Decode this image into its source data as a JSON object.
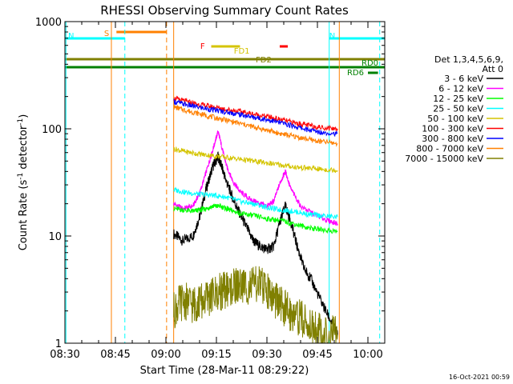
{
  "chart_data": {
    "type": "line",
    "title": "RHESSI Observing Summary Count Rates",
    "xlabel": "Start Time (28-Mar-11 08:29:22)",
    "ylabel_main": "Count Rate (s",
    "ylabel_sup1": "-1",
    "ylabel_mid": " detector",
    "ylabel_sup2": "-1",
    "ylabel_end": ")",
    "footer": "16-Oct-2021 00:59",
    "y_scale": "log",
    "ylim": [
      1,
      1000
    ],
    "xlim_minutes": [
      510,
      605
    ],
    "x_ticks": [
      {
        "min": 510,
        "label": "08:30"
      },
      {
        "min": 525,
        "label": "08:45"
      },
      {
        "min": 540,
        "label": "09:00"
      },
      {
        "min": 555,
        "label": "09:15"
      },
      {
        "min": 570,
        "label": "09:30"
      },
      {
        "min": 585,
        "label": "09:45"
      },
      {
        "min": 600,
        "label": "10:00"
      }
    ],
    "y_ticks": [
      {
        "v": 1,
        "label": "1"
      },
      {
        "v": 10,
        "label": "10"
      },
      {
        "v": 100,
        "label": "100"
      },
      {
        "v": 1000,
        "label": "1000"
      }
    ],
    "legend": {
      "header1": "Det 1,3,4,5,6,9,",
      "header2": "Att 0",
      "placement": "right"
    },
    "series": [
      {
        "name": "3 - 6 keV",
        "color": "#000000",
        "points": [
          [
            542.3,
            10.5
          ],
          [
            545,
            9
          ],
          [
            548,
            10
          ],
          [
            550,
            15
          ],
          [
            552,
            28
          ],
          [
            554,
            45
          ],
          [
            555.5,
            55
          ],
          [
            556.5,
            45
          ],
          [
            558,
            32
          ],
          [
            560,
            22
          ],
          [
            562,
            16
          ],
          [
            564,
            12
          ],
          [
            566,
            9
          ],
          [
            568,
            8
          ],
          [
            570,
            7.5
          ],
          [
            572,
            8
          ],
          [
            574,
            14
          ],
          [
            575.5,
            19
          ],
          [
            577,
            14
          ],
          [
            579,
            8
          ],
          [
            581,
            5
          ],
          [
            583,
            4
          ],
          [
            586,
            2.5
          ],
          [
            589,
            1.6
          ],
          [
            591,
            1.2
          ]
        ]
      },
      {
        "name": "6 - 12 keV",
        "color": "#ff00ff",
        "points": [
          [
            542.3,
            20
          ],
          [
            545,
            18
          ],
          [
            548,
            19
          ],
          [
            550,
            25
          ],
          [
            552,
            40
          ],
          [
            554,
            65
          ],
          [
            555.5,
            95
          ],
          [
            556.5,
            70
          ],
          [
            558,
            45
          ],
          [
            560,
            32
          ],
          [
            562,
            26
          ],
          [
            565,
            22
          ],
          [
            568,
            20
          ],
          [
            570,
            19
          ],
          [
            572,
            21
          ],
          [
            574,
            32
          ],
          [
            575.5,
            40
          ],
          [
            577,
            28
          ],
          [
            580,
            19
          ],
          [
            584,
            16
          ],
          [
            588,
            14
          ],
          [
            591,
            13
          ]
        ]
      },
      {
        "name": "12 - 25 keV",
        "color": "#00ff00",
        "points": [
          [
            542.3,
            18
          ],
          [
            545,
            17.5
          ],
          [
            548,
            17
          ],
          [
            550,
            17.5
          ],
          [
            552,
            18
          ],
          [
            554,
            19
          ],
          [
            556,
            19
          ],
          [
            558,
            18
          ],
          [
            560,
            17
          ],
          [
            563,
            16
          ],
          [
            566,
            15.5
          ],
          [
            570,
            14.5
          ],
          [
            574,
            14
          ],
          [
            578,
            13
          ],
          [
            582,
            12
          ],
          [
            586,
            11.5
          ],
          [
            591,
            11
          ]
        ]
      },
      {
        "name": "25 - 50 keV",
        "color": "#00ffff",
        "points": [
          [
            542.3,
            27
          ],
          [
            546,
            25.5
          ],
          [
            550,
            24.5
          ],
          [
            554,
            24
          ],
          [
            558,
            23
          ],
          [
            562,
            21
          ],
          [
            566,
            20
          ],
          [
            570,
            18.5
          ],
          [
            574,
            17.5
          ],
          [
            578,
            17
          ],
          [
            582,
            16
          ],
          [
            586,
            15.5
          ],
          [
            591,
            15
          ]
        ]
      },
      {
        "name": "50 - 100 keV",
        "color": "#d4c400",
        "points": [
          [
            542.3,
            65
          ],
          [
            546,
            61
          ],
          [
            550,
            58
          ],
          [
            554,
            56
          ],
          [
            558,
            54
          ],
          [
            562,
            52
          ],
          [
            566,
            50
          ],
          [
            570,
            48
          ],
          [
            574,
            46
          ],
          [
            578,
            44
          ],
          [
            582,
            43
          ],
          [
            586,
            42
          ],
          [
            591,
            41
          ]
        ]
      },
      {
        "name": "100 - 300 keV",
        "color": "#ff0000",
        "points": [
          [
            542.3,
            192
          ],
          [
            546,
            180
          ],
          [
            550,
            168
          ],
          [
            554,
            160
          ],
          [
            558,
            152
          ],
          [
            562,
            145
          ],
          [
            566,
            137
          ],
          [
            570,
            130
          ],
          [
            574,
            122
          ],
          [
            578,
            114
          ],
          [
            582,
            108
          ],
          [
            586,
            103
          ],
          [
            591,
            100
          ]
        ]
      },
      {
        "name": "300 - 800 keV",
        "color": "#0000ff",
        "points": [
          [
            542.3,
            180
          ],
          [
            546,
            168
          ],
          [
            550,
            158
          ],
          [
            554,
            150
          ],
          [
            558,
            143
          ],
          [
            562,
            136
          ],
          [
            566,
            128
          ],
          [
            570,
            122
          ],
          [
            574,
            114
          ],
          [
            578,
            106
          ],
          [
            582,
            98
          ],
          [
            586,
            93
          ],
          [
            591,
            90
          ]
        ]
      },
      {
        "name": "800 - 7000 keV",
        "color": "#ff8000",
        "points": [
          [
            542.3,
            160
          ],
          [
            546,
            148
          ],
          [
            550,
            138
          ],
          [
            554,
            128
          ],
          [
            558,
            120
          ],
          [
            562,
            112
          ],
          [
            566,
            104
          ],
          [
            570,
            97
          ],
          [
            574,
            90
          ],
          [
            578,
            85
          ],
          [
            582,
            80
          ],
          [
            586,
            76
          ],
          [
            591,
            73
          ]
        ]
      },
      {
        "name": "7000 - 15000 keV",
        "color": "#808000",
        "points": [
          [
            542.3,
            2
          ],
          [
            545,
            2.5
          ],
          [
            548,
            2.3
          ],
          [
            550,
            2.4
          ],
          [
            553,
            2.7
          ],
          [
            556,
            3
          ],
          [
            558,
            3.2
          ],
          [
            560,
            3.3
          ],
          [
            562,
            3.5
          ],
          [
            565,
            3.4
          ],
          [
            568,
            3.5
          ],
          [
            570,
            3.2
          ],
          [
            572,
            2.6
          ],
          [
            574,
            2.3
          ],
          [
            576,
            2
          ],
          [
            578,
            1.9
          ],
          [
            581,
            1.6
          ],
          [
            584,
            1.4
          ],
          [
            587,
            1.2
          ],
          [
            591,
            1.2
          ]
        ]
      }
    ],
    "flag_bars": [
      {
        "label": "S",
        "color": "#ff8000",
        "start": 525.3,
        "end": 540.2
      },
      {
        "label": "N",
        "color": "#00ffff",
        "start": 510,
        "end": 527.8
      },
      {
        "label": "N",
        "color": "#00ffff",
        "start": 588.5,
        "end": 605
      },
      {
        "label": "F",
        "color": "#ff0000",
        "start": 553.5,
        "end": 561.5
      },
      {
        "label": "",
        "color": "#ff0000",
        "start": 573.8,
        "end": 576.2
      },
      {
        "label": "FD1",
        "color": "#d4c400",
        "start": 553.5,
        "end": 562
      },
      {
        "label": "FD2",
        "color": "#808000",
        "start": 510,
        "end": 605
      },
      {
        "label": "RD0",
        "color": "#008000",
        "start": 510,
        "end": 605
      },
      {
        "label": "RD6",
        "color": "#008000",
        "start": 600,
        "end": 603
      }
    ],
    "vlines": [
      {
        "x": 510.3,
        "color": "#00ffff",
        "dash": false
      },
      {
        "x": 523.8,
        "color": "#ff8000",
        "dash": false
      },
      {
        "x": 527.8,
        "color": "#00ffff",
        "dash": true
      },
      {
        "x": 540.2,
        "color": "#ff8000",
        "dash": true
      },
      {
        "x": 542.3,
        "color": "#ff8000",
        "dash": false
      },
      {
        "x": 588.5,
        "color": "#00ffff",
        "dash": false
      },
      {
        "x": 591.5,
        "color": "#ff8000",
        "dash": false
      },
      {
        "x": 603.5,
        "color": "#00ffff",
        "dash": true
      }
    ]
  }
}
